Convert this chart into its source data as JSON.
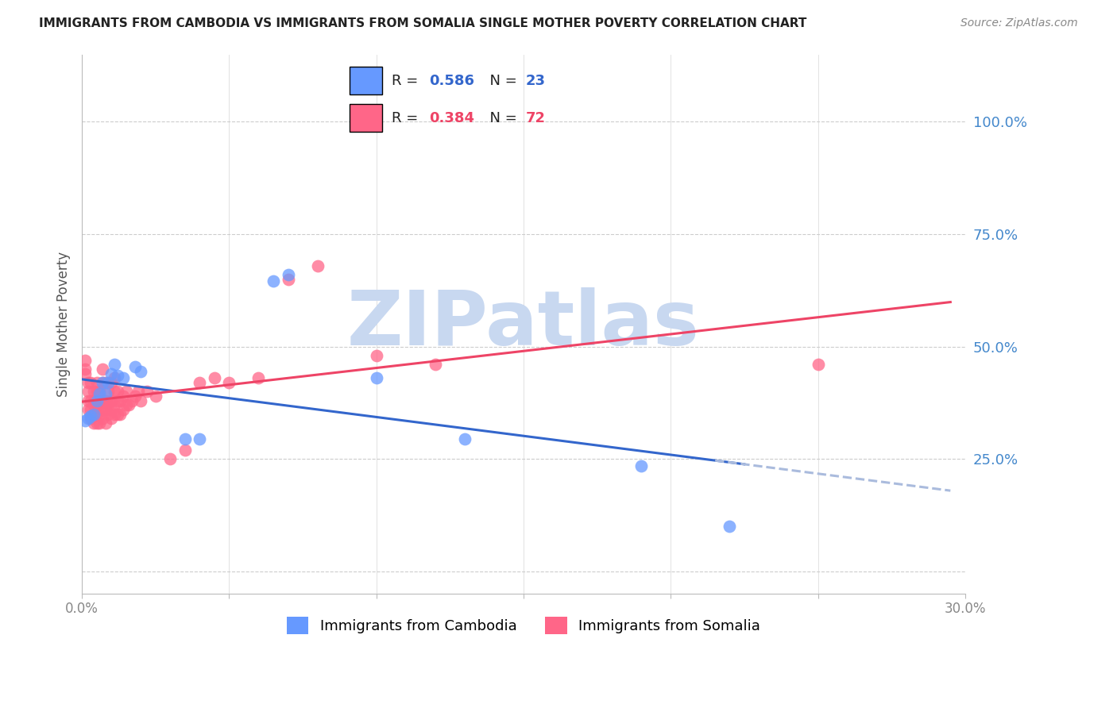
{
  "title": "IMMIGRANTS FROM CAMBODIA VS IMMIGRANTS FROM SOMALIA SINGLE MOTHER POVERTY CORRELATION CHART",
  "source": "Source: ZipAtlas.com",
  "ylabel": "Single Mother Poverty",
  "xlim": [
    0.0,
    0.3
  ],
  "ylim": [
    -0.05,
    1.15
  ],
  "R_cambodia": 0.586,
  "N_cambodia": 23,
  "R_somalia": 0.384,
  "N_somalia": 72,
  "color_cambodia": "#6699ff",
  "color_somalia": "#ff6688",
  "color_line_cambodia": "#3366cc",
  "color_line_somalia": "#ee4466",
  "color_dashed": "#aabbdd",
  "watermark": "ZIPatlas",
  "watermark_color": "#c8d8f0",
  "legend_label_cambodia": "Immigrants from Cambodia",
  "legend_label_somalia": "Immigrants from Somalia",
  "cambodia_x": [
    0.001,
    0.002,
    0.003,
    0.004,
    0.005,
    0.006,
    0.007,
    0.008,
    0.009,
    0.01,
    0.011,
    0.012,
    0.014,
    0.018,
    0.02,
    0.035,
    0.04,
    0.065,
    0.07,
    0.1,
    0.13,
    0.19,
    0.22
  ],
  "cambodia_y": [
    0.335,
    0.34,
    0.345,
    0.35,
    0.38,
    0.395,
    0.42,
    0.395,
    0.42,
    0.44,
    0.46,
    0.435,
    0.43,
    0.455,
    0.445,
    0.295,
    0.295,
    0.645,
    0.66,
    0.43,
    0.295,
    0.235,
    0.1
  ],
  "somalia_x": [
    0.001,
    0.001,
    0.001,
    0.002,
    0.002,
    0.002,
    0.002,
    0.003,
    0.003,
    0.003,
    0.003,
    0.004,
    0.004,
    0.004,
    0.004,
    0.004,
    0.005,
    0.005,
    0.005,
    0.005,
    0.005,
    0.006,
    0.006,
    0.006,
    0.006,
    0.007,
    0.007,
    0.007,
    0.007,
    0.007,
    0.008,
    0.008,
    0.008,
    0.008,
    0.009,
    0.009,
    0.009,
    0.01,
    0.01,
    0.01,
    0.01,
    0.011,
    0.011,
    0.011,
    0.011,
    0.012,
    0.012,
    0.012,
    0.013,
    0.013,
    0.014,
    0.014,
    0.015,
    0.015,
    0.016,
    0.017,
    0.018,
    0.019,
    0.02,
    0.022,
    0.025,
    0.03,
    0.035,
    0.04,
    0.045,
    0.05,
    0.06,
    0.07,
    0.08,
    0.1,
    0.12,
    0.25
  ],
  "somalia_y": [
    0.44,
    0.45,
    0.47,
    0.36,
    0.38,
    0.4,
    0.42,
    0.34,
    0.36,
    0.38,
    0.42,
    0.33,
    0.35,
    0.37,
    0.38,
    0.4,
    0.33,
    0.35,
    0.37,
    0.4,
    0.42,
    0.33,
    0.35,
    0.37,
    0.4,
    0.34,
    0.36,
    0.38,
    0.42,
    0.45,
    0.33,
    0.36,
    0.38,
    0.42,
    0.35,
    0.37,
    0.4,
    0.34,
    0.36,
    0.38,
    0.42,
    0.35,
    0.37,
    0.4,
    0.43,
    0.35,
    0.38,
    0.4,
    0.35,
    0.38,
    0.36,
    0.39,
    0.37,
    0.4,
    0.37,
    0.38,
    0.39,
    0.4,
    0.38,
    0.4,
    0.39,
    0.25,
    0.27,
    0.42,
    0.43,
    0.42,
    0.43,
    0.65,
    0.68,
    0.48,
    0.46,
    0.46
  ]
}
